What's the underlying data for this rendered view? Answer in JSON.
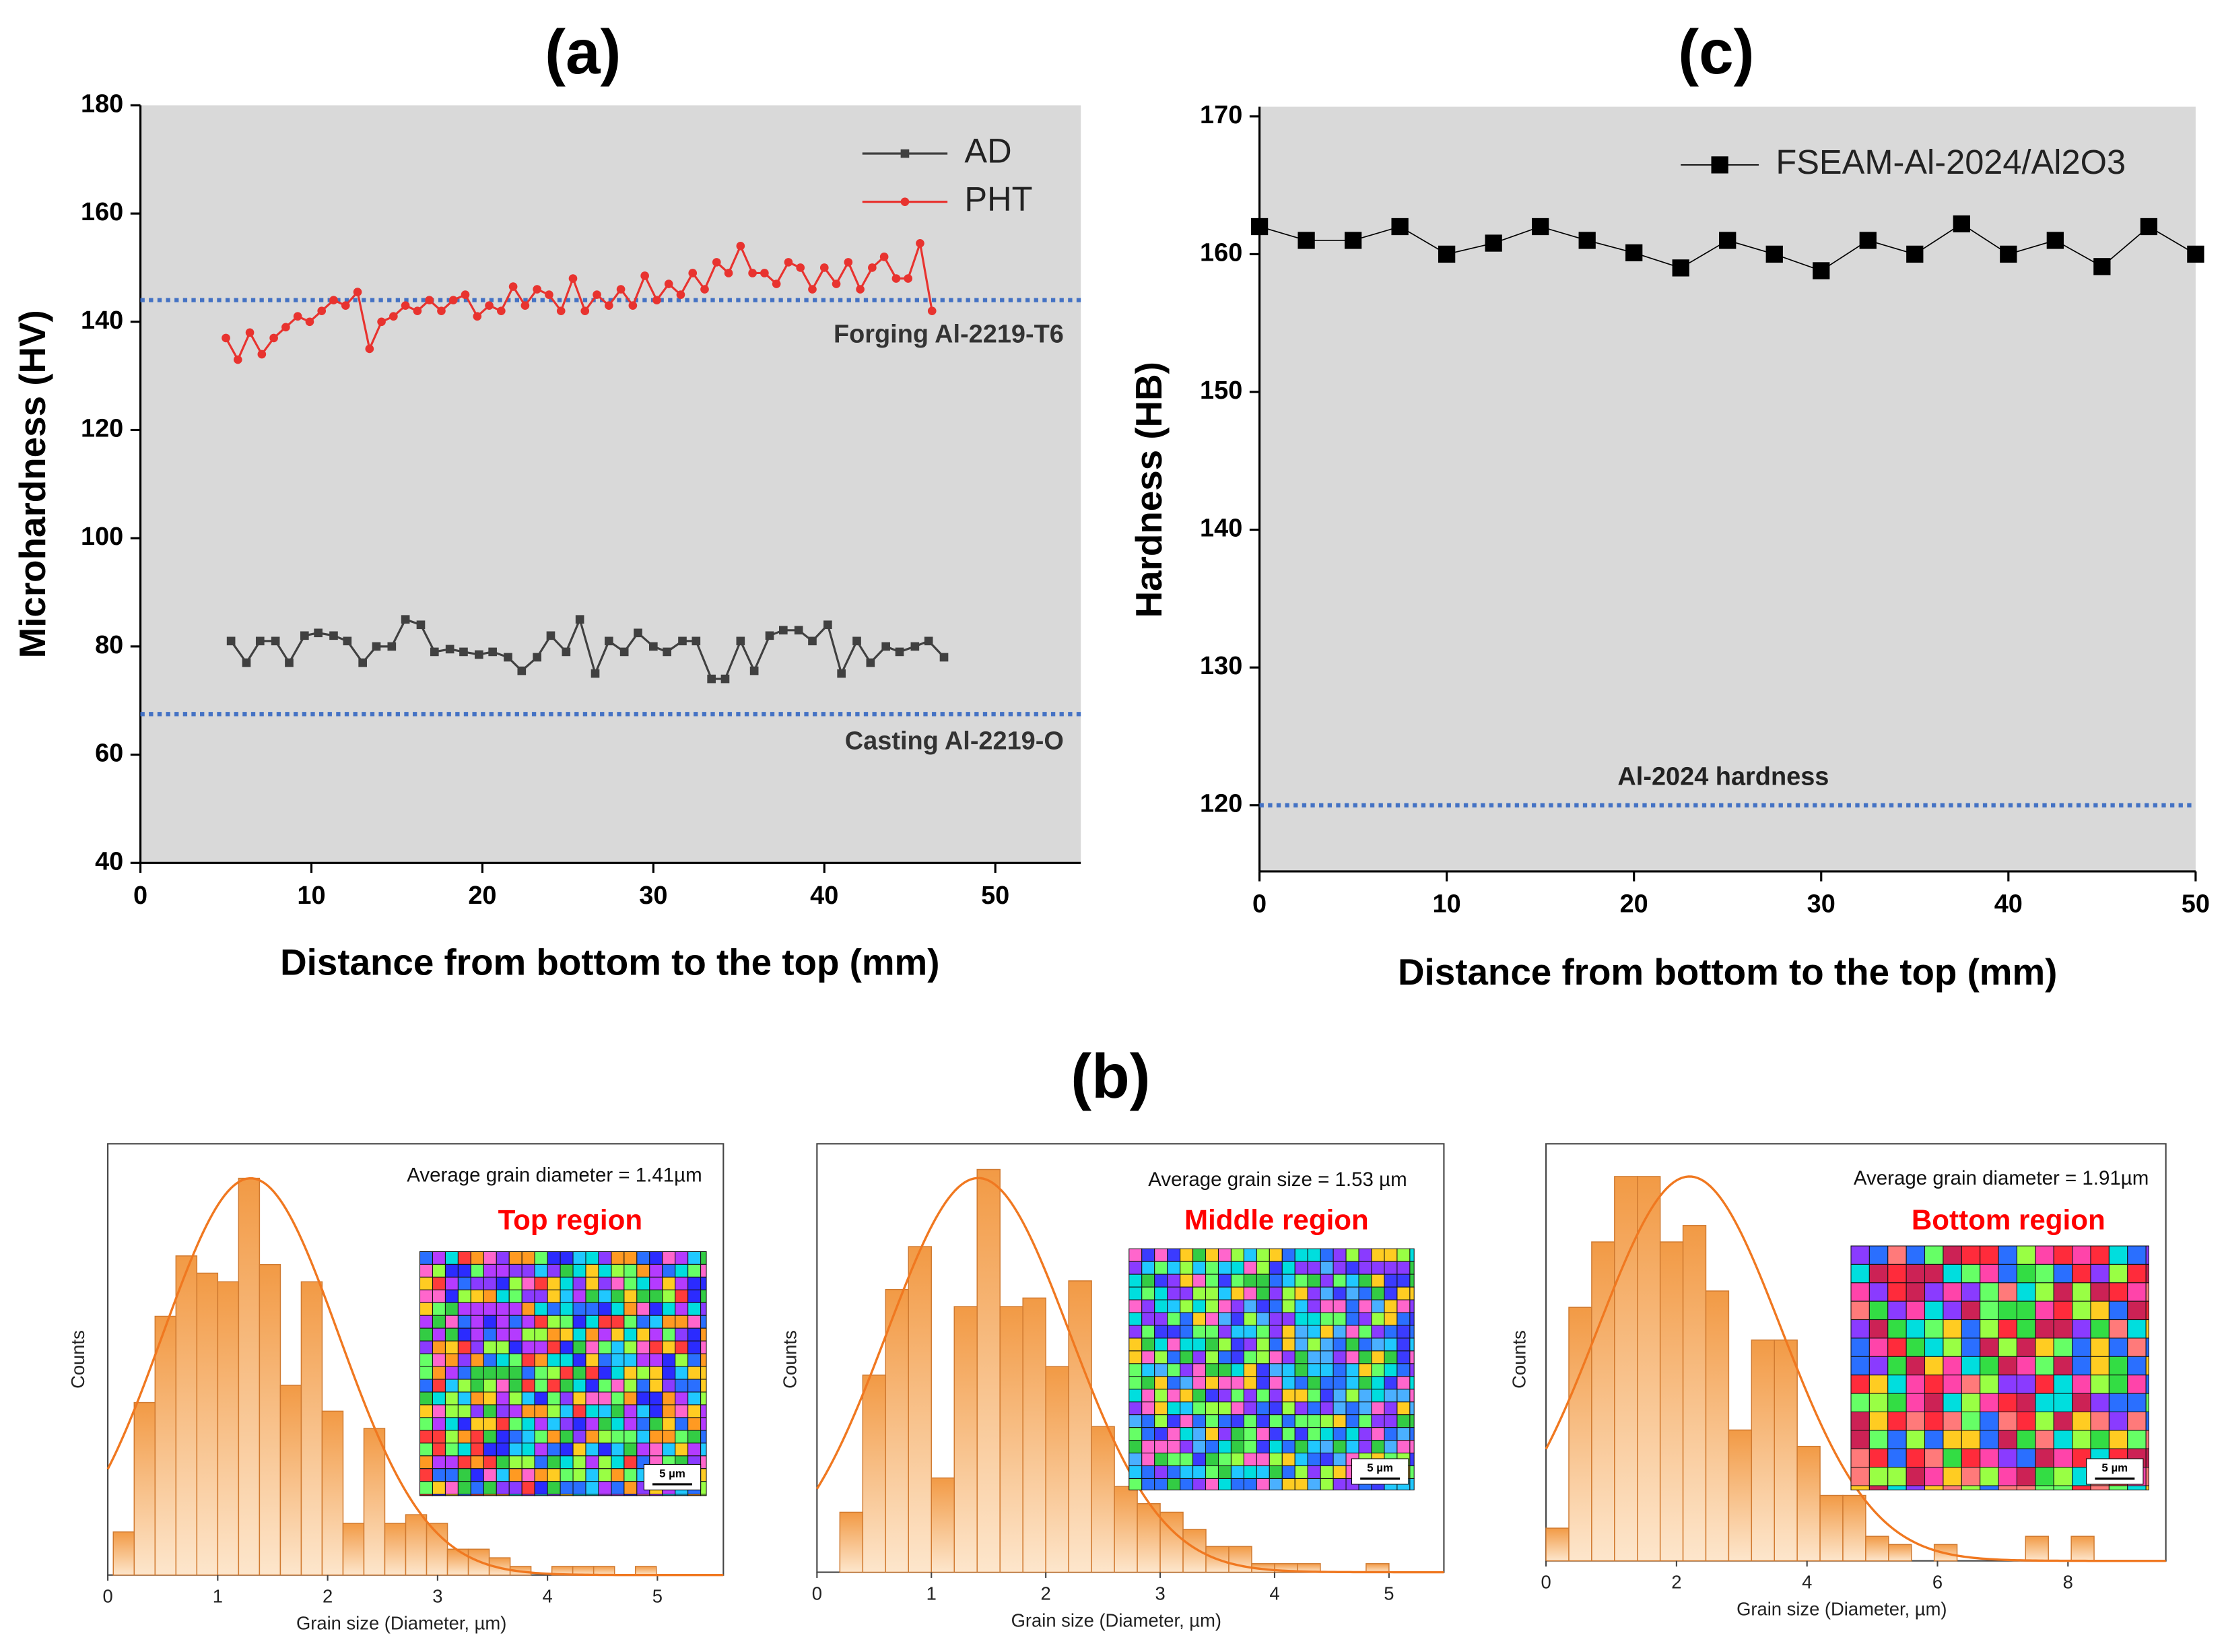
{
  "panel_b_label": "(b)",
  "chart_data": [
    {
      "type": "line",
      "title": "(a)",
      "xlabel": "Distance from bottom to the top (mm)",
      "ylabel": "Microhardness (HV)",
      "xlim": [
        0,
        55
      ],
      "ylim": [
        40,
        180
      ],
      "xticks": [
        0,
        10,
        20,
        30,
        40,
        50
      ],
      "yticks": [
        40,
        60,
        80,
        100,
        120,
        140,
        160,
        180
      ],
      "legend": "top-right",
      "background": "#d9d9d9",
      "series": [
        {
          "name": "AD",
          "color": "#404040",
          "marker": "square",
          "x": [
            5.3,
            6.2,
            7.0,
            7.9,
            8.7,
            9.6,
            10.4,
            11.3,
            12.1,
            13.0,
            13.8,
            14.7,
            15.5,
            16.4,
            17.2,
            18.1,
            18.9,
            19.8,
            20.6,
            21.5,
            22.3,
            23.2,
            24.0,
            24.9,
            25.7,
            26.6,
            27.4,
            28.3,
            29.1,
            30.0,
            30.8,
            31.7,
            32.5,
            33.4,
            34.2,
            35.1,
            35.9,
            36.8,
            37.6,
            38.5,
            39.3,
            40.2,
            41.0,
            41.9,
            42.7,
            43.6,
            44.4,
            45.3,
            46.1,
            47.0
          ],
          "values": [
            81,
            77,
            81,
            81,
            77,
            82,
            82.5,
            82,
            81,
            77,
            80,
            80,
            85,
            84,
            79,
            79.5,
            79,
            78.5,
            79,
            78,
            75.5,
            78,
            82,
            79,
            85,
            75,
            81,
            79,
            82.5,
            80,
            79,
            81,
            81,
            74,
            74,
            81,
            75.5,
            82,
            83,
            83,
            81,
            84,
            75,
            81,
            77,
            80,
            79,
            80,
            81,
            78
          ]
        },
        {
          "name": "PHT",
          "color": "#e8332f",
          "marker": "circle",
          "x": [
            5.0,
            5.7,
            6.4,
            7.1,
            7.8,
            8.5,
            9.2,
            9.9,
            10.6,
            11.3,
            12.0,
            12.7,
            13.4,
            14.1,
            14.8,
            15.5,
            16.2,
            16.9,
            17.6,
            18.3,
            19.0,
            19.7,
            20.4,
            21.1,
            21.8,
            22.5,
            23.2,
            23.9,
            24.6,
            25.3,
            26.0,
            26.7,
            27.4,
            28.1,
            28.8,
            29.5,
            30.2,
            30.9,
            31.6,
            32.3,
            33.0,
            33.7,
            34.4,
            35.1,
            35.8,
            36.5,
            37.2,
            37.9,
            38.6,
            39.3,
            40.0,
            40.7,
            41.4,
            42.1,
            42.8,
            43.5,
            44.2,
            44.9,
            45.6,
            46.3
          ],
          "values": [
            137,
            133,
            138,
            134,
            137,
            139,
            141,
            140,
            142,
            144,
            143,
            145.5,
            135,
            140,
            141,
            143,
            142,
            144,
            142,
            144,
            145,
            141,
            143,
            142,
            146.5,
            143,
            146,
            145,
            142,
            148,
            142,
            145,
            143,
            146,
            143,
            148.5,
            144,
            147,
            145,
            149,
            146,
            151,
            149,
            154,
            149,
            149,
            147,
            151,
            150,
            146,
            150,
            147,
            151,
            146,
            150,
            152,
            148,
            148,
            154.5,
            142
          ]
        }
      ],
      "reference_lines": [
        {
          "value": 144,
          "label": "Forging Al-2219-T6",
          "color": "#4472c4"
        },
        {
          "value": 67.5,
          "label": "Casting Al-2219-O",
          "color": "#4472c4"
        }
      ]
    },
    {
      "type": "line",
      "title": "(c)",
      "xlabel": "Distance from bottom to the top (mm)",
      "ylabel": "Hardness (HB)",
      "xlim": [
        0,
        50
      ],
      "ylim": [
        115.2,
        170.7
      ],
      "xticks": [
        0,
        10,
        20,
        30,
        40,
        50
      ],
      "yticks": [
        120,
        130,
        140,
        150,
        160,
        170
      ],
      "legend": "top-right",
      "background": "#d9d9d9",
      "series": [
        {
          "name": "FSEAM-Al-2024/Al2O3",
          "color": "#000000",
          "marker": "square",
          "x": [
            0,
            2.5,
            5,
            7.5,
            10,
            12.5,
            15,
            17.5,
            20,
            22.5,
            25,
            27.5,
            30,
            32.5,
            35,
            37.5,
            40,
            42.5,
            45,
            47.5,
            50
          ],
          "values": [
            162,
            161,
            161,
            162,
            160,
            160.8,
            162,
            161,
            160.1,
            159,
            161,
            160,
            158.8,
            161,
            160,
            162.2,
            160,
            161,
            159.1,
            162,
            160
          ]
        }
      ],
      "reference_lines": [
        {
          "value": 120,
          "label": "Al-2024 hardness",
          "color": "#4472c4"
        }
      ]
    },
    {
      "type": "histogram",
      "xlabel": "Grain size (Diameter, µm)",
      "ylabel": "Counts",
      "annotation": "Average grain diameter = 1.41µm",
      "region": "Top region",
      "region_color": "#ff0000",
      "scale_bar": "5 µm",
      "color": "#f0a050",
      "xlim": [
        0,
        5.6
      ],
      "ylim": [
        0,
        50
      ],
      "xticks": [
        0,
        1,
        2,
        3,
        4,
        5
      ],
      "bins": [
        0.05,
        0.24,
        0.43,
        0.62,
        0.81,
        1.0,
        1.19,
        1.38,
        1.57,
        1.76,
        1.95,
        2.14,
        2.33,
        2.52,
        2.71,
        2.9,
        3.09,
        3.28,
        3.47,
        3.66,
        3.85,
        4.04,
        4.23,
        4.42,
        4.61,
        4.8,
        4.99
      ],
      "counts": [
        5,
        20,
        30,
        37,
        35,
        34,
        46,
        36,
        22,
        34,
        19,
        6,
        17,
        6,
        7,
        6,
        3,
        3,
        2,
        1,
        0,
        1,
        1,
        1,
        0,
        1
      ],
      "fit": {
        "color": "#f07820",
        "mean": 1.3,
        "sd": 0.8,
        "peak": 46
      }
    },
    {
      "type": "histogram",
      "xlabel": "Grain size (Diameter, µm)",
      "ylabel": "Counts",
      "annotation": "Average grain size = 1.53 µm",
      "region": "Middle region",
      "region_color": "#ff0000",
      "scale_bar": "5 µm",
      "color": "#f0a050",
      "xlim": [
        0,
        5.48
      ],
      "ylim": [
        0,
        50
      ],
      "xticks": [
        0,
        1,
        2,
        3,
        4,
        5
      ],
      "bins": [
        0.2,
        0.4,
        0.6,
        0.8,
        1.0,
        1.2,
        1.4,
        1.6,
        1.8,
        2.0,
        2.2,
        2.4,
        2.6,
        2.8,
        3.0,
        3.2,
        3.4,
        3.6,
        3.8,
        4.0,
        4.2,
        4.4,
        4.6,
        4.8,
        5.0
      ],
      "counts": [
        7,
        23,
        33,
        38,
        11,
        31,
        47,
        31,
        32,
        24,
        34,
        17,
        10,
        8,
        7,
        5,
        3,
        3,
        1,
        1,
        1,
        0,
        0,
        1
      ],
      "fit": {
        "color": "#f07820",
        "mean": 1.41,
        "sd": 0.8,
        "peak": 46
      }
    },
    {
      "type": "histogram",
      "xlabel": "Grain size (Diameter, µm)",
      "ylabel": "Counts",
      "annotation": "Average grain diameter = 1.91µm",
      "region": "Bottom region",
      "region_color": "#ff0000",
      "scale_bar": "5 µm",
      "color": "#f0a050",
      "xlim": [
        0,
        9.5
      ],
      "ylim": [
        0,
        51
      ],
      "xticks": [
        0,
        2,
        4,
        6,
        8
      ],
      "bins": [
        0,
        0.35,
        0.7,
        1.05,
        1.4,
        1.75,
        2.1,
        2.45,
        2.8,
        3.15,
        3.5,
        3.85,
        4.2,
        4.55,
        4.9,
        5.25,
        5.6,
        5.95,
        6.3,
        6.65,
        7.0,
        7.35,
        7.7,
        8.05,
        8.4
      ],
      "counts": [
        4,
        31,
        39,
        47,
        47,
        39,
        41,
        33,
        16,
        27,
        27,
        14,
        8,
        8,
        3,
        2,
        0,
        2,
        0,
        0,
        0,
        3,
        0,
        3
      ],
      "fit": {
        "color": "#f07820",
        "mean": 2.2,
        "sd": 1.4,
        "peak": 47
      }
    }
  ]
}
